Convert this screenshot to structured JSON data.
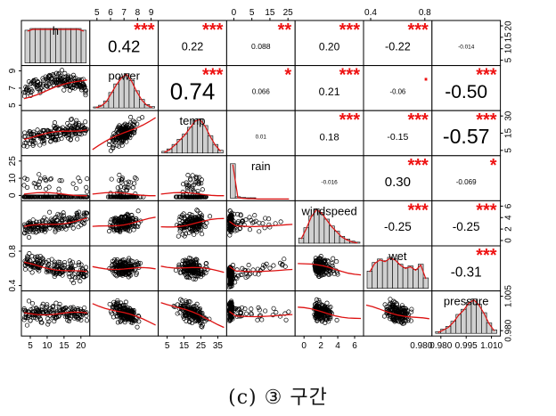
{
  "caption": "(c) ③ 구간",
  "chart_data": {
    "type": "scatterplot-matrix",
    "variables": [
      "h",
      "power",
      "temp",
      "rain",
      "windspeed",
      "wet",
      "pressure"
    ],
    "correlations": [
      {
        "pair": [
          "h",
          "power"
        ],
        "r": "0.42",
        "stars": "***"
      },
      {
        "pair": [
          "h",
          "temp"
        ],
        "r": "0.22",
        "stars": "***"
      },
      {
        "pair": [
          "h",
          "rain"
        ],
        "r": "0.088",
        "stars": "**"
      },
      {
        "pair": [
          "h",
          "windspeed"
        ],
        "r": "0.20",
        "stars": "***"
      },
      {
        "pair": [
          "h",
          "wet"
        ],
        "r": "-0.22",
        "stars": "***"
      },
      {
        "pair": [
          "h",
          "pressure"
        ],
        "r": "-0.014",
        "stars": ""
      },
      {
        "pair": [
          "power",
          "temp"
        ],
        "r": "0.74",
        "stars": "***"
      },
      {
        "pair": [
          "power",
          "rain"
        ],
        "r": "0.066",
        "stars": "*"
      },
      {
        "pair": [
          "power",
          "windspeed"
        ],
        "r": "0.21",
        "stars": "***"
      },
      {
        "pair": [
          "power",
          "wet"
        ],
        "r": "-0.06",
        "stars": "."
      },
      {
        "pair": [
          "power",
          "pressure"
        ],
        "r": "-0.50",
        "stars": "***"
      },
      {
        "pair": [
          "temp",
          "rain"
        ],
        "r": "0.01",
        "stars": ""
      },
      {
        "pair": [
          "temp",
          "windspeed"
        ],
        "r": "0.18",
        "stars": "***"
      },
      {
        "pair": [
          "temp",
          "wet"
        ],
        "r": "-0.15",
        "stars": "***"
      },
      {
        "pair": [
          "temp",
          "pressure"
        ],
        "r": "-0.57",
        "stars": "***"
      },
      {
        "pair": [
          "rain",
          "windspeed"
        ],
        "r": "-0.016",
        "stars": ""
      },
      {
        "pair": [
          "rain",
          "wet"
        ],
        "r": "0.30",
        "stars": "***"
      },
      {
        "pair": [
          "rain",
          "pressure"
        ],
        "r": "-0.069",
        "stars": "*"
      },
      {
        "pair": [
          "windspeed",
          "wet"
        ],
        "r": "-0.25",
        "stars": "***"
      },
      {
        "pair": [
          "windspeed",
          "pressure"
        ],
        "r": "-0.25",
        "stars": "***"
      },
      {
        "pair": [
          "wet",
          "pressure"
        ],
        "r": "-0.31",
        "stars": "***"
      }
    ],
    "axis_ticks": {
      "top": [
        {
          "column": "power",
          "labels": [
            "5",
            "6",
            "7",
            "8",
            "9"
          ]
        },
        {
          "column": "rain",
          "labels": [
            "0",
            "5",
            "15",
            "25"
          ]
        },
        {
          "column": "wet",
          "labels": [
            "0.4",
            "0.8"
          ]
        }
      ],
      "bottom": [
        {
          "column": "h",
          "labels": [
            "5",
            "10",
            "15",
            "20"
          ]
        },
        {
          "column": "temp",
          "labels": [
            "5",
            "15",
            "25",
            "35"
          ]
        },
        {
          "column": "windspeed",
          "labels": [
            "0",
            "2",
            "4",
            "6"
          ]
        },
        {
          "column": "pressure",
          "labels": [
            "0.980",
            "0.995",
            "1.010"
          ]
        }
      ],
      "left": [
        {
          "row": "power",
          "labels": [
            "5",
            "7",
            "9"
          ]
        },
        {
          "row": "rain",
          "labels": [
            "0",
            "10",
            "25"
          ]
        },
        {
          "row": "wet",
          "labels": [
            "0.4",
            "0.8"
          ]
        }
      ],
      "right": [
        {
          "row": "h",
          "labels": [
            "5",
            "10",
            "15",
            "20"
          ]
        },
        {
          "row": "temp",
          "labels": [
            "5",
            "15",
            "30"
          ]
        },
        {
          "row": "windspeed",
          "labels": [
            "0",
            "2",
            "4",
            "6"
          ]
        },
        {
          "row": "pressure",
          "labels": [
            "0.980",
            "1.005"
          ]
        }
      ]
    },
    "extra_tick_label": "0.980",
    "colors": {
      "stars": "#ee1111",
      "smooth": "#dd1111",
      "bars": "#d0d0d0",
      "density": "#dd1111",
      "points": "#000000"
    }
  }
}
